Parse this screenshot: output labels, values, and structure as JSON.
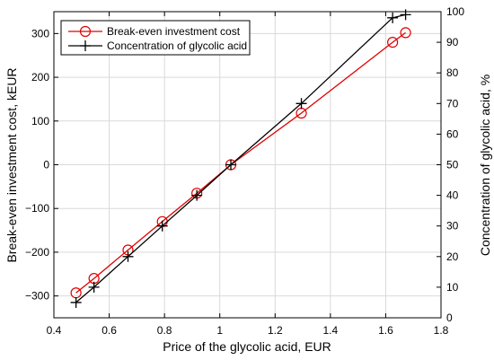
{
  "chart_data": {
    "type": "line",
    "xlabel": "Price of the glycolic acid, EUR",
    "ylabel_left": "Break-even investment cost, kEUR",
    "ylabel_right": "Concentration of glycolic acid, %",
    "xlim": [
      0.4,
      1.8
    ],
    "ylim_left": [
      -350,
      350
    ],
    "ylim_right": [
      0,
      100
    ],
    "x_ticks": [
      0.4,
      0.6,
      0.8,
      1,
      1.2,
      1.4,
      1.6,
      1.8
    ],
    "x_tick_labels": [
      "0.4",
      "0.6",
      "0.8",
      "1",
      "1.2",
      "1.4",
      "1.6",
      "1.8"
    ],
    "y_left_ticks": [
      -300,
      -200,
      -100,
      0,
      100,
      200,
      300
    ],
    "y_left_tick_labels": [
      "−300",
      "−200",
      "−100",
      "0",
      "100",
      "200",
      "300"
    ],
    "y_right_ticks": [
      0,
      10,
      20,
      30,
      40,
      50,
      60,
      70,
      80,
      90,
      100
    ],
    "y_right_tick_labels": [
      "0",
      "10",
      "20",
      "30",
      "40",
      "50",
      "60",
      "70",
      "80",
      "90",
      "100"
    ],
    "grid": true,
    "legend_position": "top-left",
    "series": [
      {
        "name": "Break-even investment cost",
        "axis": "left",
        "color": "#e00000",
        "marker": "circle",
        "x": [
          0.48,
          0.545,
          0.668,
          0.792,
          0.917,
          1.04,
          1.295,
          1.625,
          1.672
        ],
        "y": [
          -293,
          -260,
          -195,
          -130,
          -65,
          0,
          118,
          280,
          302
        ]
      },
      {
        "name": "Concentration of glycolic acid",
        "axis": "right",
        "color": "#000000",
        "marker": "plus",
        "x": [
          0.48,
          0.545,
          0.668,
          0.792,
          0.917,
          1.04,
          1.295,
          1.625,
          1.672
        ],
        "y": [
          5,
          10,
          20,
          30,
          40,
          50,
          70,
          98,
          99
        ]
      }
    ]
  }
}
